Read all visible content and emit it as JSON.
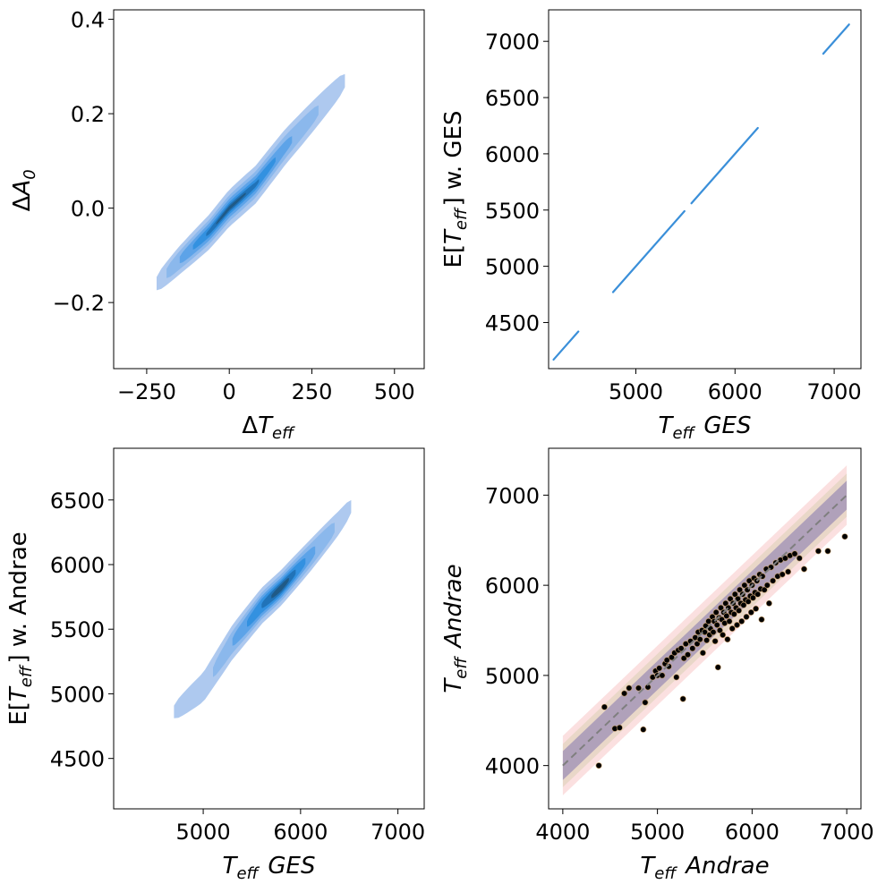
{
  "chart_data": [
    {
      "panel": "top-left",
      "type": "kde2d",
      "xlabel": "ΔT_eff",
      "ylabel": "ΔA_0",
      "xlim": [
        -350,
        590
      ],
      "ylim": [
        -0.34,
        0.42
      ],
      "xticks": [
        -250,
        0,
        250,
        500
      ],
      "xtick_labels": [
        "−250",
        "0",
        "250",
        "500"
      ],
      "yticks": [
        -0.2,
        0.0,
        0.2,
        0.4
      ],
      "ytick_labels": [
        "−0.2",
        "0.0",
        "0.2",
        "0.4"
      ],
      "ridge": [
        [
          -220,
          -0.16
        ],
        [
          -150,
          -0.11
        ],
        [
          -60,
          -0.05
        ],
        [
          0,
          0.0
        ],
        [
          80,
          0.05
        ],
        [
          170,
          0.13
        ],
        [
          260,
          0.2
        ],
        [
          350,
          0.27
        ]
      ],
      "density_levels": [
        {
          "half_width": 0.04,
          "color": "#aec9ef",
          "x_range": [
            -220,
            350
          ]
        },
        {
          "half_width": 0.028,
          "color": "#8bb8ec",
          "x_range": [
            -190,
            270
          ]
        },
        {
          "half_width": 0.02,
          "color": "#5da3e8",
          "x_range": [
            -150,
            190
          ]
        },
        {
          "half_width": 0.013,
          "color": "#3391e0",
          "x_range": [
            -110,
            140
          ]
        },
        {
          "half_width": 0.008,
          "color": "#2173b8",
          "x_range": [
            -70,
            90
          ]
        },
        {
          "half_width": 0.004,
          "color": "#205a86",
          "x_range": [
            -40,
            50
          ]
        }
      ]
    },
    {
      "panel": "top-right",
      "type": "scatter-kde",
      "xlabel": "T_eff GES",
      "ylabel": "E[T_eff] w. GES",
      "xlim": [
        4120,
        7270
      ],
      "ylim": [
        4090,
        7280
      ],
      "xticks": [
        5000,
        6000,
        7000
      ],
      "xtick_labels": [
        "5000",
        "6000",
        "7000"
      ],
      "yticks": [
        4500,
        5000,
        5500,
        6000,
        6500,
        7000
      ],
      "ytick_labels": [
        "4500",
        "5000",
        "5500",
        "6000",
        "6500",
        "7000"
      ],
      "segments": [
        [
          4170,
          4420
        ],
        [
          4770,
          5490
        ],
        [
          5560,
          6230
        ],
        [
          6890,
          7150
        ]
      ],
      "color": "#3a8fd9"
    },
    {
      "panel": "bottom-left",
      "type": "kde2d",
      "xlabel": "T_eff GES",
      "ylabel": "E[T_eff] w. Andrae",
      "xlim": [
        4080,
        7270
      ],
      "ylim": [
        4110,
        6900
      ],
      "xticks": [
        5000,
        6000,
        7000
      ],
      "xtick_labels": [
        "5000",
        "6000",
        "7000"
      ],
      "yticks": [
        4500,
        5000,
        5500,
        6000,
        6500
      ],
      "ytick_labels": [
        "4500",
        "5000",
        "5500",
        "6000",
        "6500"
      ],
      "ridge": [
        [
          4700,
          4860
        ],
        [
          5000,
          5050
        ],
        [
          5300,
          5400
        ],
        [
          5600,
          5680
        ],
        [
          5800,
          5820
        ],
        [
          6100,
          6070
        ],
        [
          6400,
          6330
        ],
        [
          6520,
          6450
        ]
      ],
      "density_levels": [
        {
          "half_width": 140,
          "color": "#aec9ef",
          "x_range": [
            4700,
            6520
          ]
        },
        {
          "half_width": 105,
          "color": "#8bb8ec",
          "x_range": [
            5100,
            6350
          ]
        },
        {
          "half_width": 80,
          "color": "#5da3e8",
          "x_range": [
            5300,
            6150
          ]
        },
        {
          "half_width": 60,
          "color": "#3391e0",
          "x_range": [
            5450,
            6050
          ]
        },
        {
          "half_width": 42,
          "color": "#2173b8",
          "x_range": [
            5600,
            5950
          ]
        },
        {
          "half_width": 25,
          "color": "#205a86",
          "x_range": [
            5700,
            5880
          ]
        }
      ]
    },
    {
      "panel": "bottom-right",
      "type": "scatter",
      "xlabel": "T_eff Andrae",
      "ylabel": "T_eff Andrae",
      "xlim": [
        3850,
        7150
      ],
      "ylim": [
        3520,
        7520
      ],
      "xticks": [
        4000,
        5000,
        6000,
        7000
      ],
      "xtick_labels": [
        "4000",
        "5000",
        "6000",
        "7000"
      ],
      "yticks": [
        4000,
        5000,
        6000,
        7000
      ],
      "ytick_labels": [
        "4000",
        "5000",
        "6000",
        "7000"
      ],
      "identity_line": {
        "x": [
          4000,
          7000
        ],
        "y": [
          4000,
          7000
        ],
        "style": "dashed",
        "color": "#7f7f7f"
      },
      "bands": [
        {
          "name": "outer",
          "offset": 330,
          "color": "#f4a6a6",
          "alpha": 0.35
        },
        {
          "name": "middle",
          "offset": 240,
          "color": "#c9c79c",
          "alpha": 0.35
        },
        {
          "name": "inner",
          "offset": 160,
          "color": "#6b5fa8",
          "alpha": 0.45
        }
      ],
      "point_color": "#000000",
      "point_edge": "#c8a070",
      "points": [
        [
          4380,
          4000
        ],
        [
          4440,
          4650
        ],
        [
          4550,
          4410
        ],
        [
          4600,
          4420
        ],
        [
          4650,
          4800
        ],
        [
          4700,
          4860
        ],
        [
          4800,
          4860
        ],
        [
          4850,
          4400
        ],
        [
          4870,
          4700
        ],
        [
          4900,
          4870
        ],
        [
          4950,
          4980
        ],
        [
          4980,
          5050
        ],
        [
          5000,
          5000
        ],
        [
          5020,
          5080
        ],
        [
          5050,
          5000
        ],
        [
          5080,
          5130
        ],
        [
          5100,
          5170
        ],
        [
          5120,
          5100
        ],
        [
          5150,
          5200
        ],
        [
          5180,
          5250
        ],
        [
          5200,
          4980
        ],
        [
          5220,
          5280
        ],
        [
          5250,
          5300
        ],
        [
          5270,
          4740
        ],
        [
          5280,
          5190
        ],
        [
          5300,
          5350
        ],
        [
          5320,
          5230
        ],
        [
          5350,
          5380
        ],
        [
          5370,
          5300
        ],
        [
          5400,
          5420
        ],
        [
          5420,
          5350
        ],
        [
          5430,
          5480
        ],
        [
          5450,
          5400
        ],
        [
          5470,
          5500
        ],
        [
          5480,
          5250
        ],
        [
          5500,
          5480
        ],
        [
          5510,
          5550
        ],
        [
          5520,
          5390
        ],
        [
          5540,
          5600
        ],
        [
          5550,
          5450
        ],
        [
          5560,
          5520
        ],
        [
          5580,
          5650
        ],
        [
          5590,
          5480
        ],
        [
          5600,
          5600
        ],
        [
          5610,
          5380
        ],
        [
          5620,
          5700
        ],
        [
          5630,
          5560
        ],
        [
          5640,
          5090
        ],
        [
          5650,
          5640
        ],
        [
          5660,
          5500
        ],
        [
          5670,
          5750
        ],
        [
          5680,
          5620
        ],
        [
          5690,
          5450
        ],
        [
          5700,
          5700
        ],
        [
          5710,
          5580
        ],
        [
          5720,
          5800
        ],
        [
          5730,
          5660
        ],
        [
          5740,
          5400
        ],
        [
          5750,
          5750
        ],
        [
          5760,
          5600
        ],
        [
          5770,
          5850
        ],
        [
          5780,
          5700
        ],
        [
          5790,
          5520
        ],
        [
          5800,
          5800
        ],
        [
          5810,
          5680
        ],
        [
          5820,
          5900
        ],
        [
          5830,
          5750
        ],
        [
          5840,
          5560
        ],
        [
          5850,
          5850
        ],
        [
          5860,
          5720
        ],
        [
          5870,
          5950
        ],
        [
          5880,
          5800
        ],
        [
          5890,
          5600
        ],
        [
          5900,
          5900
        ],
        [
          5910,
          5780
        ],
        [
          5920,
          6000
        ],
        [
          5930,
          5840
        ],
        [
          5940,
          5650
        ],
        [
          5950,
          5950
        ],
        [
          5960,
          5820
        ],
        [
          5970,
          6050
        ],
        [
          5980,
          5880
        ],
        [
          5990,
          5700
        ],
        [
          6000,
          6000
        ],
        [
          6010,
          5860
        ],
        [
          6020,
          6080
        ],
        [
          6030,
          5920
        ],
        [
          6040,
          5740
        ],
        [
          6050,
          6050
        ],
        [
          6060,
          5900
        ],
        [
          6080,
          6120
        ],
        [
          6090,
          5960
        ],
        [
          6100,
          5620
        ],
        [
          6110,
          6100
        ],
        [
          6130,
          5950
        ],
        [
          6150,
          6180
        ],
        [
          6160,
          6000
        ],
        [
          6180,
          5800
        ],
        [
          6200,
          6200
        ],
        [
          6220,
          6050
        ],
        [
          6250,
          6250
        ],
        [
          6270,
          6100
        ],
        [
          6300,
          6280
        ],
        [
          6320,
          6120
        ],
        [
          6350,
          6300
        ],
        [
          6380,
          6150
        ],
        [
          6400,
          6330
        ],
        [
          6450,
          6350
        ],
        [
          6500,
          6300
        ],
        [
          6550,
          6180
        ],
        [
          6700,
          6380
        ],
        [
          6800,
          6380
        ],
        [
          6980,
          6540
        ]
      ]
    }
  ]
}
